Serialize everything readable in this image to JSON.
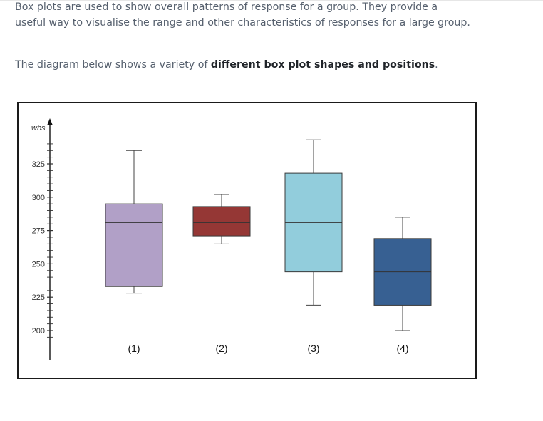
{
  "text": {
    "paragraph1": "Box plots are used to show overall patterns of response for a group. They provide a useful way to visualise the range and other characteristics of responses for a large group.",
    "paragraph2_prefix": "The diagram below shows a variety of ",
    "paragraph2_bold": "different box plot shapes and positions",
    "paragraph2_suffix": "."
  },
  "chart_data": {
    "type": "box",
    "ylabel": "wbs",
    "ylim": [
      190,
      345
    ],
    "yticks": [
      200,
      225,
      250,
      275,
      300,
      325
    ],
    "ytick_labels": [
      "200",
      "225",
      "250",
      "275",
      "300",
      "325"
    ],
    "minor_step": 5,
    "boxes": [
      {
        "label": "(1)",
        "min": 228,
        "q1": 233,
        "median": 281,
        "q3": 295,
        "max": 335,
        "color": "#b1a0c7"
      },
      {
        "label": "(2)",
        "min": 265,
        "q1": 271,
        "median": 281,
        "q3": 293,
        "max": 302,
        "color": "#953735"
      },
      {
        "label": "(3)",
        "min": 219,
        "q1": 244,
        "median": 281,
        "q3": 318,
        "max": 343,
        "color": "#92cddc"
      },
      {
        "label": "(4)",
        "min": 200,
        "q1": 219,
        "median": 244,
        "q3": 269,
        "max": 285,
        "color": "#376092"
      }
    ]
  }
}
